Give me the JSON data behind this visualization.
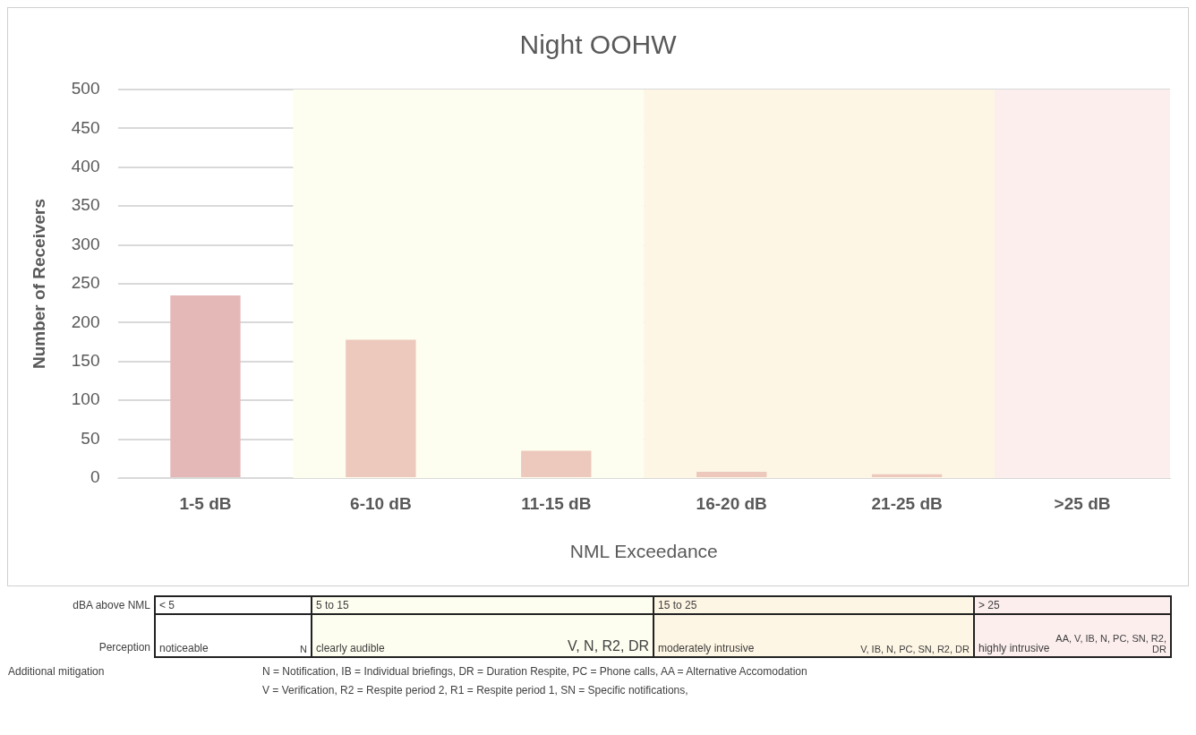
{
  "chart_data": {
    "type": "bar",
    "title": "Night OOHW",
    "xlabel": "NML Exceedance",
    "ylabel": "Number of Receivers",
    "categories": [
      "1-5 dB",
      "6-10 dB",
      "11-15 dB",
      "16-20 dB",
      "21-25 dB",
      ">25 dB"
    ],
    "values": [
      235,
      178,
      35,
      8,
      5,
      0
    ],
    "colors": [
      "#e5b8b8",
      "#ecc9bc",
      "#ecc9bc",
      "#ecc9bc",
      "#ecc9bc",
      "#ecc9bc"
    ],
    "ylim": [
      0,
      500
    ],
    "yticks": [
      0,
      50,
      100,
      150,
      200,
      250,
      300,
      350,
      400,
      450,
      500
    ],
    "grid": "y",
    "legend": false,
    "bands": [
      {
        "axis": "x",
        "from": "6-10 dB",
        "to": "11-15 dB",
        "color": "#fefef0"
      },
      {
        "axis": "x",
        "from": "16-20 dB",
        "to": "21-25 dB",
        "color": "#fef6e4"
      },
      {
        "axis": "x",
        "from": ">25 dB",
        "to": ">25 dB",
        "color": "#fdeeee"
      }
    ],
    "annotations": [
      "dBA above NML",
      "< 5",
      "5 to 15",
      "15 to 25",
      "> 25",
      "Perception",
      "noticeable",
      "N",
      "clearly audible",
      "V, N, R2, DR",
      "moderately intrusive",
      "V, IB, N, PC, SN, R2, DR",
      "highly intrusive",
      "AA, V, IB, N, PC, SN, R2, DR",
      "Additional mitigation",
      "N = Notification,  IB = Individual briefings,  DR = Duration Respite,  PC = Phone calls,  AA = Alternative Accomodation",
      "V = Verification,  R2 = Respite period 2,  R1 = Respite period 1,  SN = Specific notifications,"
    ]
  }
}
